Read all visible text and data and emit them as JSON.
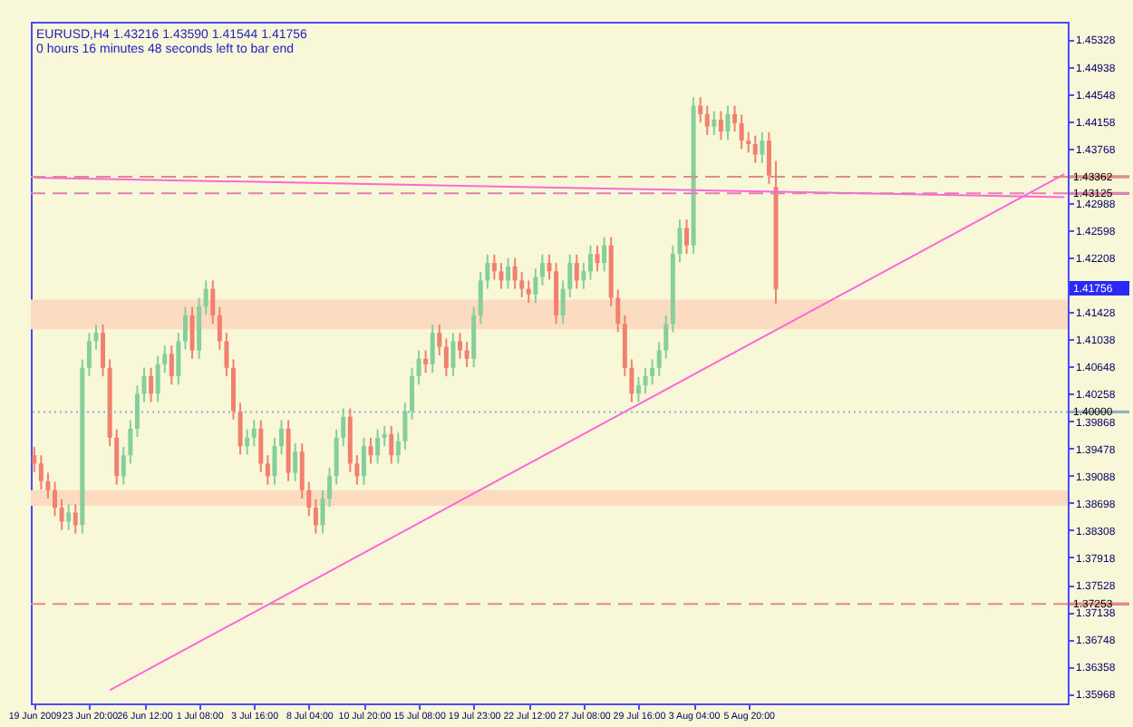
{
  "chart_data": {
    "type": "candlestick",
    "title": "EURUSD,H4  1.43216 1.43590 1.41544 1.41756",
    "subtitle": "0 hours 16 minutes 48 seconds left to bar end",
    "categories": [
      "19 Jun 2009",
      null,
      null,
      null,
      null,
      null,
      null,
      null,
      "23 Jun 20:00",
      null,
      null,
      null,
      null,
      null,
      null,
      null,
      "26 Jun 12:00",
      null,
      null,
      null,
      null,
      null,
      null,
      null,
      "1 Jul 08:00",
      null,
      null,
      null,
      null,
      null,
      null,
      null,
      "3 Jul 16:00",
      null,
      null,
      null,
      null,
      null,
      null,
      null,
      "8 Jul 04:00",
      null,
      null,
      null,
      null,
      null,
      null,
      null,
      "10 Jul 20:00",
      null,
      null,
      null,
      null,
      null,
      null,
      null,
      "15 Jul 08:00",
      null,
      null,
      null,
      null,
      null,
      null,
      null,
      "19 Jul 23:00",
      null,
      null,
      null,
      null,
      null,
      null,
      null,
      "22 Jul 12:00",
      null,
      null,
      null,
      null,
      null,
      null,
      null,
      "27 Jul 08:00",
      null,
      null,
      null,
      null,
      null,
      null,
      null,
      "29 Jul 16:00",
      null,
      null,
      null,
      null,
      null,
      null,
      null,
      "3 Aug 04:00",
      null,
      null,
      null,
      null,
      null,
      null,
      null,
      "5 Aug 20:00",
      null,
      null,
      null,
      null,
      null,
      null,
      null,
      null,
      null,
      null,
      null,
      null,
      null,
      null,
      null,
      null,
      null,
      null,
      null,
      null,
      null,
      null,
      null,
      null,
      null,
      null,
      null,
      null,
      null,
      null,
      null,
      null,
      null,
      null,
      null,
      null,
      null,
      null,
      null,
      null,
      null,
      null,
      null,
      null,
      null,
      null
    ],
    "ohlc": [
      [
        1.3938,
        1.395,
        1.3914,
        1.3926
      ],
      [
        1.3926,
        1.3938,
        1.3889,
        1.3901
      ],
      [
        1.3901,
        1.3913,
        1.3876,
        1.3888
      ],
      [
        1.3888,
        1.39,
        1.3851,
        1.3863
      ],
      [
        1.3863,
        1.3875,
        1.3831,
        1.3843
      ],
      [
        1.3843,
        1.3868,
        1.3831,
        1.3856
      ],
      [
        1.3856,
        1.3868,
        1.3826,
        1.3838
      ],
      [
        1.3838,
        1.4075,
        1.3826,
        1.4063
      ],
      [
        1.4063,
        1.4113,
        1.4051,
        1.4101
      ],
      [
        1.4101,
        1.4125,
        1.4089,
        1.4113
      ],
      [
        1.4113,
        1.4125,
        1.4051,
        1.4063
      ],
      [
        1.4063,
        1.4075,
        1.3951,
        1.3963
      ],
      [
        1.3963,
        1.3975,
        1.3896,
        1.3908
      ],
      [
        1.3908,
        1.395,
        1.3896,
        1.3938
      ],
      [
        1.3938,
        1.3988,
        1.3926,
        1.3976
      ],
      [
        1.3976,
        1.4038,
        1.3964,
        1.4026
      ],
      [
        1.4026,
        1.4063,
        1.4014,
        1.4051
      ],
      [
        1.4051,
        1.4063,
        1.4014,
        1.4026
      ],
      [
        1.4026,
        1.408,
        1.4014,
        1.4068
      ],
      [
        1.4068,
        1.4095,
        1.4056,
        1.4083
      ],
      [
        1.4083,
        1.4095,
        1.4039,
        1.4051
      ],
      [
        1.4051,
        1.4113,
        1.4039,
        1.4101
      ],
      [
        1.4101,
        1.415,
        1.4089,
        1.4138
      ],
      [
        1.4138,
        1.415,
        1.4076,
        1.4088
      ],
      [
        1.4088,
        1.4163,
        1.4076,
        1.4151
      ],
      [
        1.4151,
        1.4188,
        1.4139,
        1.4176
      ],
      [
        1.4176,
        1.4188,
        1.4126,
        1.4138
      ],
      [
        1.4138,
        1.415,
        1.4089,
        1.4101
      ],
      [
        1.4101,
        1.4113,
        1.4051,
        1.4063
      ],
      [
        1.4063,
        1.4075,
        1.3989,
        1.4001
      ],
      [
        1.4001,
        1.4013,
        1.3939,
        1.3951
      ],
      [
        1.3951,
        1.3975,
        1.3939,
        1.3963
      ],
      [
        1.3963,
        1.3988,
        1.3951,
        1.3976
      ],
      [
        1.3976,
        1.3988,
        1.3914,
        1.3926
      ],
      [
        1.3926,
        1.3938,
        1.3896,
        1.3908
      ],
      [
        1.3908,
        1.3963,
        1.3896,
        1.3951
      ],
      [
        1.3951,
        1.3988,
        1.3939,
        1.3976
      ],
      [
        1.3976,
        1.3988,
        1.3901,
        1.3913
      ],
      [
        1.3913,
        1.3955,
        1.3901,
        1.3943
      ],
      [
        1.3943,
        1.3955,
        1.3876,
        1.3888
      ],
      [
        1.3888,
        1.39,
        1.3851,
        1.3863
      ],
      [
        1.3863,
        1.3875,
        1.3826,
        1.3838
      ],
      [
        1.3838,
        1.3888,
        1.3826,
        1.3876
      ],
      [
        1.3876,
        1.392,
        1.3864,
        1.3908
      ],
      [
        1.3908,
        1.3975,
        1.3896,
        1.3963
      ],
      [
        1.3963,
        1.4005,
        1.3951,
        1.3993
      ],
      [
        1.3993,
        1.4005,
        1.3914,
        1.3926
      ],
      [
        1.3926,
        1.3938,
        1.3896,
        1.3908
      ],
      [
        1.3908,
        1.3963,
        1.3896,
        1.3951
      ],
      [
        1.3951,
        1.3963,
        1.3926,
        1.3938
      ],
      [
        1.3938,
        1.3975,
        1.3926,
        1.3963
      ],
      [
        1.3963,
        1.398,
        1.3951,
        1.3968
      ],
      [
        1.3968,
        1.398,
        1.3926,
        1.3938
      ],
      [
        1.3938,
        1.397,
        1.3926,
        1.3958
      ],
      [
        1.3958,
        1.4013,
        1.3946,
        1.4001
      ],
      [
        1.4001,
        1.4063,
        1.3989,
        1.4051
      ],
      [
        1.4051,
        1.4088,
        1.4039,
        1.4076
      ],
      [
        1.4076,
        1.4088,
        1.4056,
        1.4068
      ],
      [
        1.4068,
        1.4125,
        1.4056,
        1.4113
      ],
      [
        1.4113,
        1.4125,
        1.4081,
        1.4093
      ],
      [
        1.4093,
        1.4105,
        1.4051,
        1.4063
      ],
      [
        1.4063,
        1.4113,
        1.4051,
        1.4101
      ],
      [
        1.4101,
        1.4113,
        1.4076,
        1.4088
      ],
      [
        1.4088,
        1.41,
        1.4064,
        1.4076
      ],
      [
        1.4076,
        1.415,
        1.4064,
        1.4138
      ],
      [
        1.4138,
        1.42,
        1.4126,
        1.4188
      ],
      [
        1.4188,
        1.4225,
        1.4176,
        1.4213
      ],
      [
        1.4213,
        1.4225,
        1.4189,
        1.4201
      ],
      [
        1.4201,
        1.4213,
        1.4176,
        1.4188
      ],
      [
        1.4188,
        1.422,
        1.4176,
        1.4208
      ],
      [
        1.4208,
        1.422,
        1.4176,
        1.4188
      ],
      [
        1.4188,
        1.42,
        1.4164,
        1.4176
      ],
      [
        1.4176,
        1.4188,
        1.4156,
        1.4168
      ],
      [
        1.4168,
        1.4205,
        1.4156,
        1.4193
      ],
      [
        1.4193,
        1.4225,
        1.4181,
        1.4213
      ],
      [
        1.4213,
        1.4225,
        1.4189,
        1.4201
      ],
      [
        1.4201,
        1.4213,
        1.4126,
        1.4138
      ],
      [
        1.4138,
        1.4188,
        1.4126,
        1.4176
      ],
      [
        1.4176,
        1.4225,
        1.4164,
        1.4213
      ],
      [
        1.4213,
        1.4225,
        1.4176,
        1.4188
      ],
      [
        1.4188,
        1.4213,
        1.4176,
        1.4201
      ],
      [
        1.4201,
        1.4238,
        1.4189,
        1.4226
      ],
      [
        1.4226,
        1.4238,
        1.4201,
        1.4213
      ],
      [
        1.4213,
        1.425,
        1.4201,
        1.4238
      ],
      [
        1.4238,
        1.425,
        1.4151,
        1.4163
      ],
      [
        1.4163,
        1.4175,
        1.4114,
        1.4126
      ],
      [
        1.4126,
        1.4138,
        1.4051,
        1.4063
      ],
      [
        1.4063,
        1.4075,
        1.4014,
        1.4026
      ],
      [
        1.4026,
        1.405,
        1.4014,
        1.4038
      ],
      [
        1.4038,
        1.4063,
        1.4026,
        1.4051
      ],
      [
        1.4051,
        1.4075,
        1.4039,
        1.4063
      ],
      [
        1.4063,
        1.41,
        1.4051,
        1.4088
      ],
      [
        1.4088,
        1.4138,
        1.4076,
        1.4126
      ],
      [
        1.4126,
        1.4238,
        1.4114,
        1.4226
      ],
      [
        1.4226,
        1.4275,
        1.4214,
        1.4263
      ],
      [
        1.4263,
        1.4275,
        1.4226,
        1.4238
      ],
      [
        1.4238,
        1.445,
        1.4226,
        1.4438
      ],
      [
        1.4438,
        1.445,
        1.4414,
        1.4426
      ],
      [
        1.4426,
        1.4438,
        1.4396,
        1.4408
      ],
      [
        1.4408,
        1.443,
        1.4396,
        1.4418
      ],
      [
        1.4418,
        1.443,
        1.4389,
        1.4401
      ],
      [
        1.4401,
        1.4438,
        1.4389,
        1.4426
      ],
      [
        1.4426,
        1.4438,
        1.4401,
        1.4413
      ],
      [
        1.4413,
        1.4425,
        1.4376,
        1.4388
      ],
      [
        1.4388,
        1.44,
        1.4371,
        1.4383
      ],
      [
        1.4383,
        1.4395,
        1.4356,
        1.4368
      ],
      [
        1.4368,
        1.44,
        1.4356,
        1.4388
      ],
      [
        1.4388,
        1.44,
        1.4326,
        1.4338
      ],
      [
        1.43216,
        1.4359,
        1.41544,
        1.41756
      ],
      null,
      null,
      null,
      null,
      null,
      null,
      null,
      null,
      null,
      null,
      null,
      null,
      null,
      null,
      null,
      null,
      null,
      null,
      null,
      null,
      null,
      null,
      null,
      null,
      null,
      null,
      null,
      null,
      null,
      null,
      null,
      null,
      null,
      null,
      null,
      null,
      null,
      null,
      null,
      null,
      null,
      null
    ],
    "colors": [
      "#f2806e",
      "#f2806e",
      "#f2806e",
      "#f2806e",
      "#f2806e",
      "#86cf9a",
      "#f2806e",
      "#86cf9a",
      "#86cf9a",
      "#86cf9a",
      "#f2806e",
      "#f2806e",
      "#f2806e",
      "#86cf9a",
      "#86cf9a",
      "#86cf9a",
      "#86cf9a",
      "#f2806e",
      "#86cf9a",
      "#86cf9a",
      "#f2806e",
      "#86cf9a",
      "#86cf9a",
      "#f2806e",
      "#86cf9a",
      "#86cf9a",
      "#f2806e",
      "#f2806e",
      "#f2806e",
      "#f2806e",
      "#f2806e",
      "#86cf9a",
      "#86cf9a",
      "#f2806e",
      "#f2806e",
      "#86cf9a",
      "#86cf9a",
      "#f2806e",
      "#86cf9a",
      "#f2806e",
      "#f2806e",
      "#f2806e",
      "#86cf9a",
      "#86cf9a",
      "#86cf9a",
      "#86cf9a",
      "#f2806e",
      "#f2806e",
      "#86cf9a",
      "#f2806e",
      "#86cf9a",
      "#86cf9a",
      "#f2806e",
      "#86cf9a",
      "#86cf9a",
      "#86cf9a",
      "#86cf9a",
      "#f2806e",
      "#86cf9a",
      "#f2806e",
      "#f2806e",
      "#86cf9a",
      "#f2806e",
      "#f2806e",
      "#86cf9a",
      "#86cf9a",
      "#86cf9a",
      "#f2806e",
      "#f2806e",
      "#86cf9a",
      "#f2806e",
      "#f2806e",
      "#f2806e",
      "#86cf9a",
      "#86cf9a",
      "#f2806e",
      "#f2806e",
      "#86cf9a",
      "#86cf9a",
      "#f2806e",
      "#86cf9a",
      "#86cf9a",
      "#f2806e",
      "#86cf9a",
      "#f2806e",
      "#f2806e",
      "#f2806e",
      "#f2806e",
      "#86cf9a",
      "#86cf9a",
      "#86cf9a",
      "#86cf9a",
      "#86cf9a",
      "#86cf9a",
      "#86cf9a",
      "#f2806e",
      "#86cf9a",
      "#f2806e",
      "#f2806e",
      "#86cf9a",
      "#f2806e",
      "#86cf9a",
      "#f2806e",
      "#f2806e",
      "#f2806e",
      "#f2806e",
      "#86cf9a",
      "#f2806e",
      "#f2806e",
      null,
      null,
      null,
      null,
      null,
      null,
      null,
      null,
      null,
      null,
      null,
      null,
      null,
      null,
      null,
      null,
      null,
      null,
      null,
      null,
      null,
      null,
      null,
      null,
      null,
      null,
      null,
      null,
      null,
      null,
      null,
      null,
      null,
      null,
      null,
      null,
      null,
      null,
      null,
      null,
      null,
      null
    ],
    "series": [
      {
        "type": "line",
        "color": "#ff66dd",
        "values": [
          null,
          null,
          null,
          null,
          null,
          null,
          null,
          null,
          null,
          null,
          null,
          1.3602,
          null,
          null,
          null,
          null,
          null,
          null,
          null,
          null,
          null,
          null,
          null,
          null,
          null,
          null,
          null,
          null,
          null,
          null,
          null,
          null,
          null,
          null,
          null,
          null,
          null,
          null,
          null,
          null,
          null,
          null,
          null,
          null,
          null,
          null,
          null,
          null,
          null,
          null,
          null,
          null,
          null,
          null,
          null,
          null,
          null,
          null,
          null,
          null,
          null,
          null,
          null,
          null,
          null,
          null,
          null,
          null,
          null,
          null,
          null,
          null,
          null,
          null,
          null,
          null,
          null,
          null,
          null,
          null,
          null,
          null,
          null,
          null,
          null,
          null,
          null,
          null,
          null,
          null,
          null,
          null,
          null,
          null,
          null,
          null,
          null,
          null,
          null,
          null,
          null,
          null,
          null,
          null,
          null,
          null,
          null,
          null,
          null,
          null,
          null,
          null,
          null,
          null,
          null,
          null,
          null,
          null,
          null,
          null,
          null,
          null,
          null,
          null,
          null,
          null,
          null,
          null,
          null,
          null,
          null,
          null,
          null,
          null,
          null,
          null,
          null,
          null,
          null,
          null,
          null,
          null,
          null,
          null,
          null,
          null,
          null,
          null,
          null,
          null,
          1.434
        ]
      },
      {
        "type": "line",
        "color": "#ff66dd",
        "values": [
          1.4335,
          null,
          null,
          null,
          null,
          null,
          null,
          null,
          null,
          null,
          null,
          null,
          null,
          null,
          null,
          null,
          null,
          null,
          null,
          null,
          null,
          null,
          null,
          null,
          null,
          null,
          null,
          null,
          null,
          null,
          null,
          null,
          null,
          null,
          null,
          null,
          null,
          null,
          null,
          null,
          null,
          null,
          null,
          null,
          null,
          null,
          null,
          null,
          null,
          null,
          null,
          null,
          null,
          null,
          null,
          null,
          null,
          null,
          null,
          null,
          null,
          null,
          null,
          null,
          null,
          null,
          null,
          null,
          null,
          null,
          null,
          null,
          null,
          null,
          null,
          null,
          null,
          null,
          null,
          null,
          null,
          null,
          null,
          null,
          null,
          null,
          null,
          null,
          null,
          null,
          null,
          null,
          null,
          null,
          null,
          null,
          null,
          null,
          null,
          null,
          null,
          null,
          null,
          null,
          null,
          null,
          null,
          null,
          null,
          null,
          null,
          null,
          null,
          null,
          null,
          null,
          null,
          null,
          null,
          null,
          null,
          null,
          null,
          null,
          null,
          null,
          null,
          null,
          null,
          null,
          null,
          null,
          null,
          null,
          null,
          null,
          null,
          null,
          null,
          null,
          null,
          null,
          null,
          null,
          null,
          null,
          null,
          null,
          null,
          null,
          1.4307
        ]
      }
    ],
    "ylim": [
      1.3583,
      1.4558
    ],
    "yticks": [
      1.45328,
      1.44938,
      1.44548,
      1.44158,
      1.43768,
      1.42988,
      1.42598,
      1.42208,
      1.41428,
      1.41038,
      1.40648,
      1.40258,
      1.39868,
      1.39478,
      1.39088,
      1.38698,
      1.38308,
      1.37918,
      1.37528,
      1.37138,
      1.36748,
      1.36358,
      1.35968
    ],
    "ref_lines": [
      {
        "axis": "y",
        "value": 1.43362,
        "label": "1.43362",
        "color": "#e08a8a",
        "line_style": "dashed"
      },
      {
        "axis": "y",
        "value": 1.43125,
        "label": "1.43125",
        "color": "#e080b0",
        "line_style": "dashed"
      },
      {
        "axis": "y",
        "value": 1.4,
        "label": "1.40000",
        "color": "#90b0c8",
        "line_style": "dotted"
      },
      {
        "axis": "y",
        "value": 1.37253,
        "label": "1.37253",
        "color": "#e08a8a",
        "line_style": "dashed"
      }
    ],
    "bands": [
      {
        "axis": "y",
        "from": 1.4118,
        "to": 1.41605,
        "color": "#fbdcc0"
      },
      {
        "axis": "y",
        "from": 1.38655,
        "to": 1.3888,
        "color": "#fbdcc0"
      }
    ],
    "annotations": [
      "1.41756"
    ]
  }
}
